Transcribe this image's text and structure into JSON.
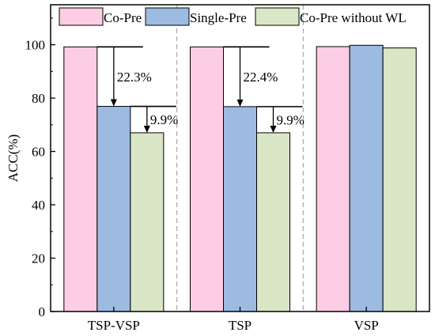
{
  "chart_data": {
    "type": "bar",
    "categories": [
      "TSP-VSP",
      "TSP",
      "VSP"
    ],
    "series": [
      {
        "name": "Co-Pre",
        "values": [
          99.2,
          99.2,
          99.3
        ],
        "color": "#fccde5"
      },
      {
        "name": "Single-Pre",
        "values": [
          76.9,
          76.8,
          99.8
        ],
        "color": "#9dbbe1"
      },
      {
        "name": "Co-Pre without WL",
        "values": [
          67.0,
          67.0,
          98.8
        ],
        "color": "#d9e7c7"
      }
    ],
    "xlabel": "",
    "ylabel": "ACC(%)",
    "ylim": [
      0,
      115
    ],
    "yticks": [
      0,
      20,
      40,
      60,
      80,
      100
    ],
    "legend_position": "top",
    "group_separators": "dashed",
    "annotations": [
      {
        "category": "TSP-VSP",
        "from_series": "Co-Pre",
        "to_series": "Single-Pre",
        "text": "22.3%"
      },
      {
        "category": "TSP-VSP",
        "from_series": "Single-Pre",
        "to_series": "Co-Pre without WL",
        "text": "9.9%"
      },
      {
        "category": "TSP",
        "from_series": "Co-Pre",
        "to_series": "Single-Pre",
        "text": "22.4%"
      },
      {
        "category": "TSP",
        "from_series": "Single-Pre",
        "to_series": "Co-Pre without WL",
        "text": "9.9%"
      }
    ]
  }
}
